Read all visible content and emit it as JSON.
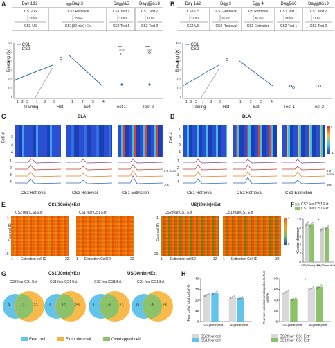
{
  "panels": {
    "A": "A",
    "B": "B",
    "C": "C",
    "D": "D",
    "E": "E",
    "F": "F",
    "G": "G",
    "H": "H"
  },
  "panelA": {
    "protocol": [
      {
        "day": "Day 1&2",
        "top": "CS1-US",
        "bottom": "CS2-US"
      },
      {
        "day": "Day 3",
        "top": "CS2 Retrieval",
        "bottom": "CS1(30 min)+Ext",
        "gap": "10 min"
      },
      {
        "day": "Day 4&5",
        "top": "CS1 Test 1",
        "bottom": "CS2 Test 1",
        "gap": "24 hrs"
      },
      {
        "day": "Day 17&18",
        "top": "CS1 Test 2",
        "bottom": "CS2 Test 2",
        "gap": "24 hrs"
      }
    ],
    "gap_day12": "24 hrs",
    "ylabel": "Freezing (%)",
    "yticks": [
      "0",
      "10",
      "20",
      "30",
      "40",
      "50",
      "60"
    ],
    "legend": [
      "CS1",
      "CS2"
    ],
    "group_labels": [
      "Training",
      "Ret",
      "Ext",
      "Test 1",
      "Test 2"
    ],
    "training_ticks": [
      "1",
      "2",
      "3",
      "1",
      "2",
      "3"
    ],
    "ext_ticks": [
      "1",
      "2",
      "3",
      "4"
    ],
    "sig": [
      "***",
      "***"
    ]
  },
  "panelB": {
    "protocol": [
      {
        "day": "Day 1&2",
        "top": "CS1-US",
        "bottom": "CS2-US"
      },
      {
        "day": "Day 3",
        "top": "CS1-Retrieval",
        "bottom": "CS2-Retrieval",
        "gap": "10 min"
      },
      {
        "day": "Day 4",
        "top": "US Retrieval",
        "bottom": "CS1 Extinction",
        "gap": "30 min"
      },
      {
        "day": "Day 5&6",
        "top": "CS1 Test 1",
        "bottom": "CS2 Test 1",
        "gap": "24 hrs"
      },
      {
        "day": "Day 18&19",
        "top": "CS1 Test 2",
        "bottom": "CS2 Test 2",
        "gap": "24 hrs"
      }
    ],
    "gap_day12": "24 hrs",
    "ylabel": "Freezing (%)",
    "yticks": [
      "0",
      "10",
      "20",
      "30",
      "40",
      "50",
      "60"
    ],
    "legend": [
      "CS1",
      "CS2"
    ],
    "group_labels": [
      "Training",
      "Ret",
      "Ext",
      "Test 1",
      "Test 2"
    ],
    "training_ticks": [
      "1",
      "2",
      "3",
      "1",
      "2",
      "3"
    ],
    "ext_ticks": [
      "1",
      "2",
      "3",
      "4"
    ]
  },
  "panelC": {
    "title": "BLA",
    "ylabel": "Cell #",
    "cell_ticks": [
      "1",
      "2",
      "3",
      "4"
    ],
    "trace_cells": [
      "1",
      "2",
      "3",
      "4"
    ],
    "labels": [
      "CS2 Retrieval",
      "CS2 Retrieval",
      "CS1 Extinction"
    ],
    "scale": "Z-Score",
    "scale_z": "2 Z-Score",
    "scale_t": "10s",
    "colorbar": [
      "4",
      "-1"
    ]
  },
  "panelD": {
    "title": "BLA",
    "ylabel": "Cell #",
    "cell_ticks": [
      "1",
      "2",
      "3",
      "4"
    ],
    "trace_cells": [
      "1",
      "2",
      "3",
      "4"
    ],
    "labels": [
      "CS1 Retrieval",
      "CS2 Retrieval",
      "CS1 Extinction"
    ],
    "scale": "Z-Score",
    "scale_z": "2 Z-Score",
    "scale_t": "10s",
    "colorbar": [
      "4",
      "-1"
    ]
  },
  "panelE": {
    "groups": [
      {
        "title": "CS1(30min)+Ext",
        "maps": [
          {
            "label": "CS2 fear/CS1 Ext",
            "xlabel": "Extinction cell ID",
            "x_end": "22"
          },
          {
            "label": "CS1 fear/CS1 Ext",
            "xlabel": "Extinction Cell ID",
            "x_end": "22"
          }
        ],
        "ylabel": "Fear cell ID",
        "y_start": "1",
        "y_end": "19"
      },
      {
        "title": "US(30min)+Ext",
        "maps": [
          {
            "label": "CS2 fear/CS1 Ext",
            "xlabel": "Extinction cell ID",
            "x_end": "32"
          },
          {
            "label": "CS1 fear/CS1 Ext",
            "xlabel": "Extinction Cell ID",
            "x_end": "32"
          }
        ],
        "ylabel": "Fear cell ID",
        "y_start": "1",
        "y_end": "26"
      }
    ],
    "x_start": "1",
    "colorbar": [
      "1",
      "0"
    ]
  },
  "chart_data": [
    {
      "type": "bar",
      "panel": "F",
      "ylabel": "Cosine distance",
      "categories": [
        "CS1(30min)+Ext",
        "US(30min)+Ext"
      ],
      "series": [
        {
          "name": "CS2 fear/CS1 Ext",
          "values": [
            0.89,
            0.77
          ],
          "color": "#cfcfcf"
        },
        {
          "name": "CS1 fear/CS1 Ext",
          "values": [
            0.88,
            0.8
          ],
          "color": "#8cc26a"
        }
      ],
      "ylim": [
        0,
        1.0
      ],
      "yticks": [
        "0",
        "0.2",
        "0.4",
        "0.6",
        "0.8",
        "1.0"
      ],
      "sig": "*",
      "legend_placement": "top-right"
    },
    {
      "type": "bar",
      "panel": "H-left",
      "ylabel": "Fear cells/ total cells(%)",
      "categories": [
        "CS1(30min)+Ext",
        "US(30min)+Ext"
      ],
      "series": [
        {
          "name": "CS2 fear cell",
          "values": [
            25,
            23
          ],
          "color": "#d9d9d9"
        },
        {
          "name": "CS1 fear cell",
          "values": [
            27,
            22
          ],
          "color": "#62c4ea"
        }
      ],
      "ylim": [
        0,
        40
      ],
      "yticks": [
        "0",
        "10",
        "20",
        "30",
        "40"
      ],
      "legend_placement": "top-right"
    },
    {
      "type": "bar",
      "panel": "H-right",
      "ylabel": "Fear and extinction overlapped cells/ fear cells(%)",
      "categories": [
        "CS1(30min)+Ext",
        "US(30min)+Ext"
      ],
      "series": [
        {
          "name": "CS2 fear⁺ CS1 Ext⁺",
          "values": [
            55,
            62
          ],
          "color": "#d9d9d9"
        },
        {
          "name": "CS1 fear⁺ CS1 Ext⁺",
          "values": [
            42,
            65
          ],
          "color": "#8cc26a"
        }
      ],
      "ylim": [
        0,
        80
      ],
      "yticks": [
        "0",
        "20",
        "40",
        "60",
        "80"
      ],
      "sig": "*",
      "legend_placement": "bottom"
    }
  ],
  "panelG": {
    "group_titles": [
      "CS1(30min)+Ext",
      "US(30min)+Ext"
    ],
    "venns": [
      {
        "label": "CS2 fear/CS1 Ext",
        "left": "9",
        "mid": "12",
        "right": "23"
      },
      {
        "label": "CS1 fear/CS1 Ext",
        "left": "9",
        "mid": "10",
        "right": "25"
      },
      {
        "label": "CS2 fear/CS1 Ext",
        "left": "11",
        "mid": "18",
        "right": "22"
      },
      {
        "label": "CS1 fear/CS1 Ext",
        "left": "11",
        "mid": "15",
        "right": "25"
      }
    ],
    "legend": [
      "Fear cell",
      "Extinction cell",
      "Overlapped cell"
    ]
  },
  "colors": {
    "cs1": "#2b68b4",
    "cs2": "#9a9a9a",
    "fear": "#62c4ea",
    "extinction": "#f6b43c",
    "overlap": "#8cc26a"
  }
}
